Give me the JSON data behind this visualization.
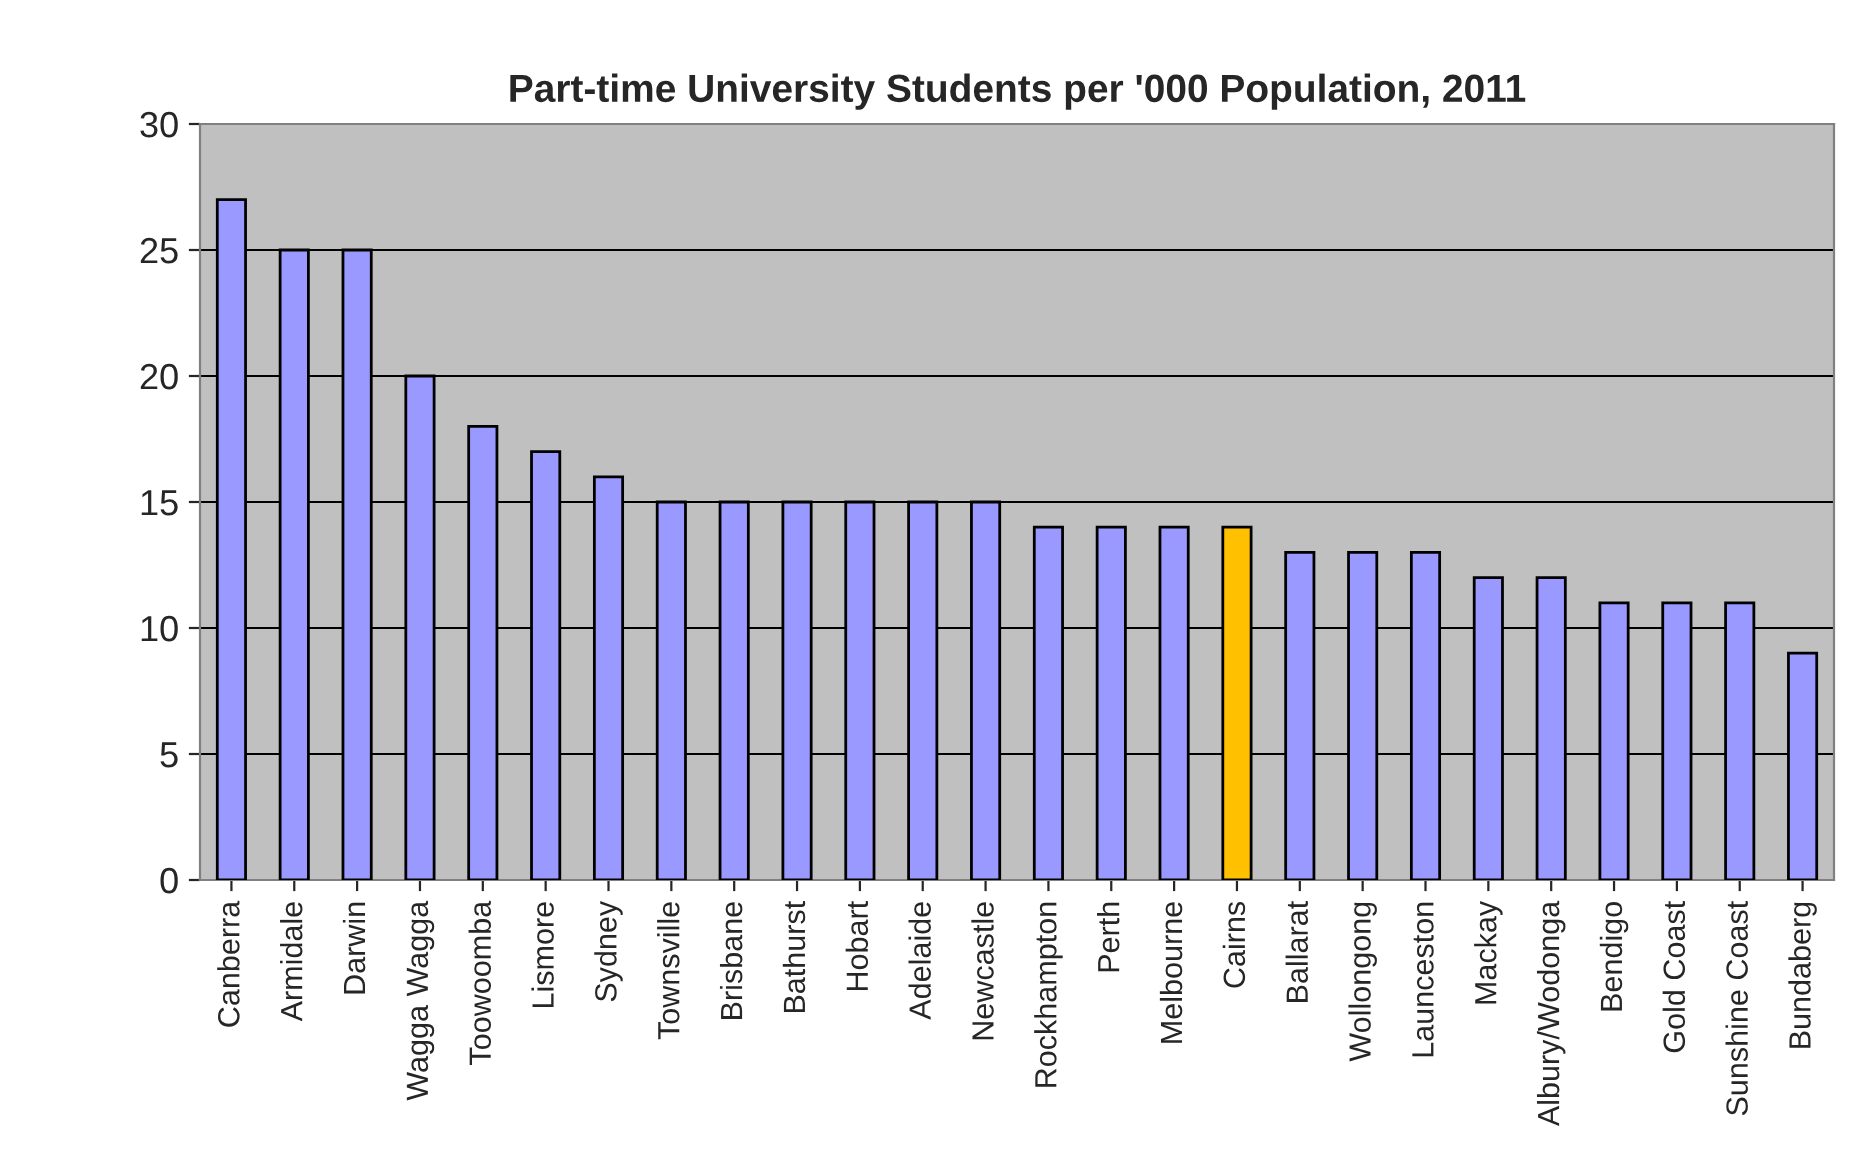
{
  "chart_data": {
    "type": "bar",
    "title": "Part-time University Students per '000 Population, 2011",
    "categories": [
      "Canberra",
      "Armidale",
      "Darwin",
      "Wagga Wagga",
      "Toowoomba",
      "Lismore",
      "Sydney",
      "Townsville",
      "Brisbane",
      "Bathurst",
      "Hobart",
      "Adelaide",
      "Newcastle",
      "Rockhampton",
      "Perth",
      "Melbourne",
      "Cairns",
      "Ballarat",
      "Wollongong",
      "Launceston",
      "Mackay",
      "Albury/Wodonga",
      "Bendigo",
      "Gold Coast",
      "Sunshine Coast",
      "Bundaberg"
    ],
    "values": [
      27,
      25,
      25,
      20,
      18,
      17,
      16,
      15,
      15,
      15,
      15,
      15,
      15,
      14,
      14,
      14,
      14,
      13,
      13,
      13,
      12,
      12,
      11,
      11,
      11,
      9
    ],
    "colors": [
      "#9999ff",
      "#9999ff",
      "#9999ff",
      "#9999ff",
      "#9999ff",
      "#9999ff",
      "#9999ff",
      "#9999ff",
      "#9999ff",
      "#9999ff",
      "#9999ff",
      "#9999ff",
      "#9999ff",
      "#9999ff",
      "#9999ff",
      "#9999ff",
      "#ffc000",
      "#9999ff",
      "#9999ff",
      "#9999ff",
      "#9999ff",
      "#9999ff",
      "#9999ff",
      "#9999ff",
      "#9999ff",
      "#9999ff"
    ],
    "ylim": [
      0,
      30
    ],
    "yticks": [
      0,
      5,
      10,
      15,
      20,
      25,
      30
    ],
    "grid": "y"
  }
}
